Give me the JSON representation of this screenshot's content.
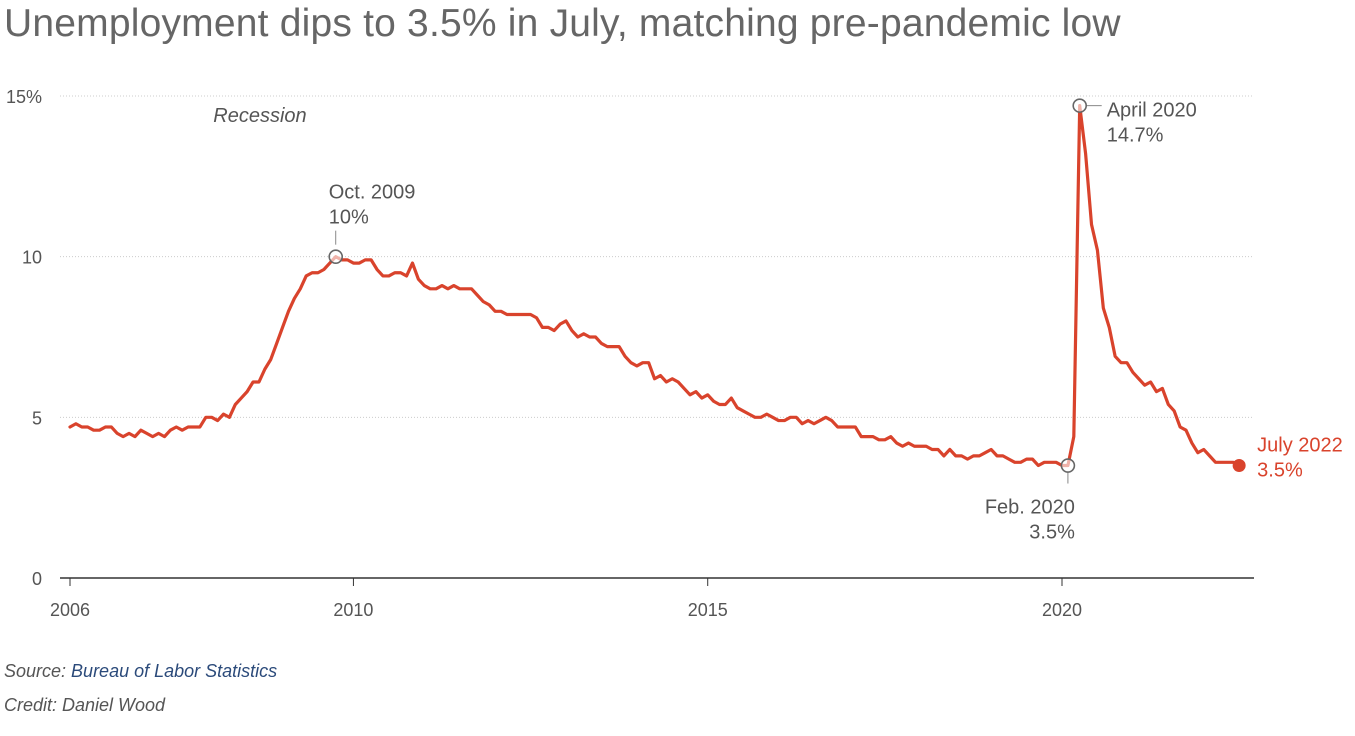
{
  "title": "Unemployment dips to 3.5% in July, matching pre-pandemic low",
  "footer": {
    "source_label": "Source: ",
    "source_link": "Bureau of Labor Statistics",
    "credit": "Credit: Daniel Wood"
  },
  "colors": {
    "line": "#d9432c",
    "text": "#555555",
    "grid": "#cccccc",
    "marker": "#666666"
  },
  "chart_data": {
    "type": "line",
    "title": "Unemployment dips to 3.5% in July, matching pre-pandemic low",
    "xlabel": "",
    "ylabel": "",
    "xlim": [
      "2006-01",
      "2022-07"
    ],
    "ylim": [
      0,
      15
    ],
    "grid": true,
    "y_ticks": [
      {
        "value": 0,
        "label": "0"
      },
      {
        "value": 5,
        "label": "5"
      },
      {
        "value": 10,
        "label": "10"
      },
      {
        "value": 15,
        "label": "15%"
      }
    ],
    "x_ticks": [
      {
        "value": "2006-01",
        "label": "2006"
      },
      {
        "value": "2010-01",
        "label": "2010"
      },
      {
        "value": "2015-01",
        "label": "2015"
      },
      {
        "value": "2020-01",
        "label": "2020"
      }
    ],
    "region_label": "Recession",
    "annotations": [
      {
        "date": "2009-10",
        "value": 10.0,
        "lines": [
          "Oct. 2009",
          "10%"
        ],
        "style": "circle"
      },
      {
        "date": "2020-04",
        "value": 14.7,
        "lines": [
          "April 2020",
          "14.7%"
        ],
        "style": "circle"
      },
      {
        "date": "2020-02",
        "value": 3.5,
        "lines": [
          "Feb. 2020",
          "3.5%"
        ],
        "style": "circle"
      },
      {
        "date": "2022-07",
        "value": 3.5,
        "lines": [
          "July 2022",
          "3.5%"
        ],
        "style": "dot"
      }
    ],
    "series": [
      {
        "start": "2006-01",
        "frequency": "monthly",
        "values": [
          4.7,
          4.8,
          4.7,
          4.7,
          4.6,
          4.6,
          4.7,
          4.7,
          4.5,
          4.4,
          4.5,
          4.4,
          4.6,
          4.5,
          4.4,
          4.5,
          4.4,
          4.6,
          4.7,
          4.6,
          4.7,
          4.7,
          4.7,
          5.0,
          5.0,
          4.9,
          5.1,
          5.0,
          5.4,
          5.6,
          5.8,
          6.1,
          6.1,
          6.5,
          6.8,
          7.3,
          7.8,
          8.3,
          8.7,
          9.0,
          9.4,
          9.5,
          9.5,
          9.6,
          9.8,
          10.0,
          9.9,
          9.9,
          9.8,
          9.8,
          9.9,
          9.9,
          9.6,
          9.4,
          9.4,
          9.5,
          9.5,
          9.4,
          9.8,
          9.3,
          9.1,
          9.0,
          9.0,
          9.1,
          9.0,
          9.1,
          9.0,
          9.0,
          9.0,
          8.8,
          8.6,
          8.5,
          8.3,
          8.3,
          8.2,
          8.2,
          8.2,
          8.2,
          8.2,
          8.1,
          7.8,
          7.8,
          7.7,
          7.9,
          8.0,
          7.7,
          7.5,
          7.6,
          7.5,
          7.5,
          7.3,
          7.2,
          7.2,
          7.2,
          6.9,
          6.7,
          6.6,
          6.7,
          6.7,
          6.2,
          6.3,
          6.1,
          6.2,
          6.1,
          5.9,
          5.7,
          5.8,
          5.6,
          5.7,
          5.5,
          5.4,
          5.4,
          5.6,
          5.3,
          5.2,
          5.1,
          5.0,
          5.0,
          5.1,
          5.0,
          4.9,
          4.9,
          5.0,
          5.0,
          4.8,
          4.9,
          4.8,
          4.9,
          5.0,
          4.9,
          4.7,
          4.7,
          4.7,
          4.7,
          4.4,
          4.4,
          4.4,
          4.3,
          4.3,
          4.4,
          4.2,
          4.1,
          4.2,
          4.1,
          4.1,
          4.1,
          4.0,
          4.0,
          3.8,
          4.0,
          3.8,
          3.8,
          3.7,
          3.8,
          3.8,
          3.9,
          4.0,
          3.8,
          3.8,
          3.7,
          3.6,
          3.6,
          3.7,
          3.7,
          3.5,
          3.6,
          3.6,
          3.6,
          3.5,
          3.5,
          4.4,
          14.7,
          13.2,
          11.0,
          10.2,
          8.4,
          7.8,
          6.9,
          6.7,
          6.7,
          6.4,
          6.2,
          6.0,
          6.1,
          5.8,
          5.9,
          5.4,
          5.2,
          4.7,
          4.6,
          4.2,
          3.9,
          4.0,
          3.8,
          3.6,
          3.6,
          3.6,
          3.6,
          3.5
        ]
      }
    ]
  }
}
